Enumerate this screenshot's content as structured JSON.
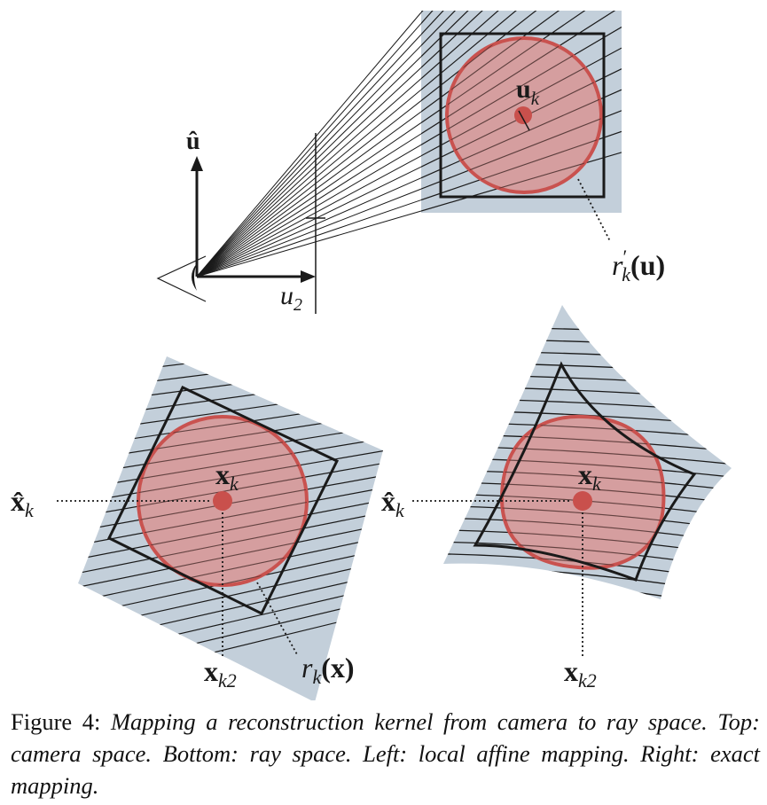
{
  "labels": {
    "u_hat": "û",
    "u2": {
      "base": "u",
      "sub": "2"
    },
    "u_k": {
      "base": "u",
      "sub": "k"
    },
    "r_prime": {
      "base": "r",
      "sub": "k",
      "prime": "′",
      "arg": "(u)"
    },
    "x_hat_left": {
      "base": "x̂",
      "sub": "k"
    },
    "x_k_left": {
      "base": "x",
      "sub": "k"
    },
    "x_k2_left": {
      "base": "x",
      "sub": "k2"
    },
    "r_k_x": {
      "base": "r",
      "sub": "k",
      "arg": "(x)"
    },
    "x_hat_right": {
      "base": "x̂",
      "sub": "k"
    },
    "x_k_right": {
      "base": "x",
      "sub": "k"
    },
    "x_k2_right": {
      "base": "x",
      "sub": "k2"
    }
  },
  "caption": {
    "label": "Figure 4:",
    "text": "Mapping a reconstruction kernel from camera to ray space. Top: camera space. Bottom: ray space. Left: local affine mapping. Right: exact mapping."
  },
  "colors": {
    "ray_region": "#c3cfda",
    "kernel_fill": "#dc8a88",
    "kernel_stroke": "#c9524f",
    "center_dot": "#c9504c",
    "line": "#1a1a1a"
  }
}
